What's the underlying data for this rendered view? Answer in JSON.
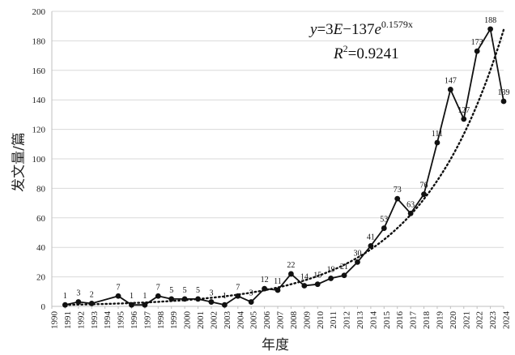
{
  "chart_data": {
    "type": "line",
    "xlabel": "年度",
    "ylabel": "发文量/篇",
    "ylim": [
      0,
      200
    ],
    "yticks": [
      0,
      20,
      40,
      60,
      80,
      100,
      120,
      140,
      160,
      180,
      200
    ],
    "xticks": [
      "1990",
      "1991",
      "1992",
      "1993",
      "1994",
      "1995",
      "1996",
      "1997",
      "1998",
      "1999",
      "2000",
      "2001",
      "2002",
      "2003",
      "2004",
      "2005",
      "2006",
      "2007",
      "2008",
      "2009",
      "2010",
      "2011",
      "2012",
      "2013",
      "2014",
      "2015",
      "2016",
      "2017",
      "2018",
      "2019",
      "2020",
      "2021",
      "2022",
      "2023",
      "2024"
    ],
    "grid": "horizontal",
    "series": [
      {
        "style": "solid-line-with-dots",
        "x": [
          1991,
          1992,
          1993,
          1995,
          1996,
          1997,
          1998,
          1999,
          2000,
          2001,
          2002,
          2003,
          2004,
          2005,
          2006,
          2007,
          2008,
          2009,
          2010,
          2011,
          2012,
          2013,
          2014,
          2015,
          2016,
          2017,
          2018,
          2019,
          2020,
          2021,
          2022,
          2023,
          2024
        ],
        "values": [
          1,
          3,
          2,
          7,
          1,
          1,
          7,
          5,
          5,
          5,
          3,
          1,
          7,
          3,
          12,
          11,
          22,
          14,
          15,
          19,
          21,
          30,
          41,
          53,
          73,
          63,
          76,
          111,
          147,
          127,
          173,
          188,
          139
        ],
        "labels": [
          "1",
          "3",
          "2",
          "7",
          "1",
          "1",
          "7",
          "5",
          "5",
          "5",
          "3",
          "1",
          "7",
          "3",
          "12",
          "11",
          "22",
          "14",
          "15",
          "19",
          "21",
          "30",
          "41",
          "53",
          "73",
          "63",
          "76",
          "111",
          "147",
          "127",
          "173",
          "188",
          "139"
        ]
      },
      {
        "style": "dotted-trendline",
        "trend": "exponential",
        "coef": 3e-137,
        "rate": 0.1579
      }
    ],
    "annotation": {
      "equation_y": "y",
      "equation_eq": "=3",
      "equation_E": "E",
      "equation_rest": "−137",
      "equation_e": "e",
      "equation_exp": "0.1579x",
      "r2_R": "R",
      "r2_sup": "2",
      "r2_val": "=0.9241"
    }
  }
}
